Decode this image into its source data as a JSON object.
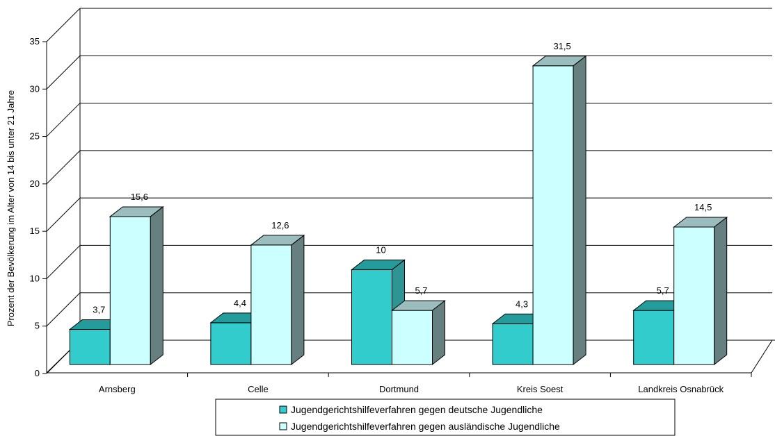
{
  "chart_data": {
    "type": "bar",
    "title": "",
    "xlabel": "",
    "ylabel": "Prozent der Bevölkerung im Alter von 14 bis unter 21 Jahre",
    "ylim": [
      0,
      35
    ],
    "yticks": [
      0,
      5,
      10,
      15,
      20,
      25,
      30,
      35
    ],
    "grid": true,
    "legend_position": "bottom",
    "categories": [
      "Arnsberg",
      "Celle",
      "Dortmund",
      "Kreis Soest",
      "Landkreis Osnabrück"
    ],
    "series": [
      {
        "name": "Jugendgerichtshilfeverfahren gegen deutsche Jugendliche",
        "values": [
          3.7,
          4.4,
          10,
          4.3,
          5.7
        ],
        "labels": [
          "3,7",
          "4,4",
          "10",
          "4,3",
          "5,7"
        ],
        "color": "#33CCCC"
      },
      {
        "name": "Jugendgerichtshilfeverfahren gegen ausländische Jugendliche",
        "values": [
          15.6,
          12.6,
          5.7,
          31.5,
          14.5
        ],
        "labels": [
          "15,6",
          "12,6",
          "5,7",
          "31,5",
          "14,5"
        ],
        "color": "#CCFFFF"
      }
    ]
  }
}
